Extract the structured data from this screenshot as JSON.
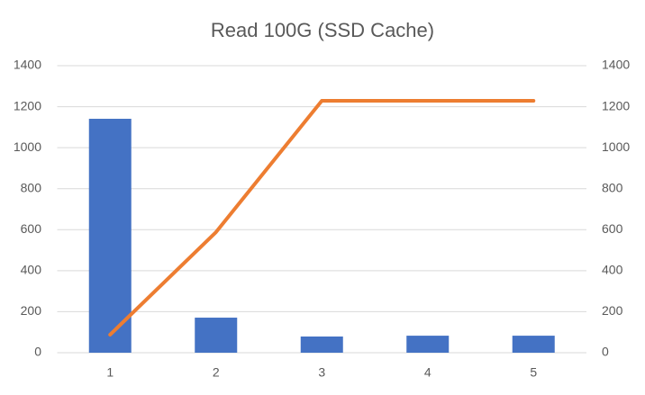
{
  "chart_data": {
    "type": "combo",
    "title": "Read 100G (SSD Cache)",
    "categories": [
      "1",
      "2",
      "3",
      "4",
      "5"
    ],
    "series": [
      {
        "type": "bar",
        "color": "#4472c4",
        "values": [
          1141,
          171,
          79,
          83,
          83
        ]
      },
      {
        "type": "line",
        "color": "#ed7d31",
        "axis": "y2",
        "values": [
          88,
          588,
          1229,
          1229,
          1229
        ]
      }
    ],
    "ylim": [
      0,
      1400
    ],
    "yticks": [
      0,
      200,
      400,
      600,
      800,
      1000,
      1200,
      1400
    ],
    "y2lim": [
      0,
      1400
    ],
    "y2ticks": [
      0,
      200,
      400,
      600,
      800,
      1000,
      1200,
      1400
    ],
    "grid": true
  }
}
